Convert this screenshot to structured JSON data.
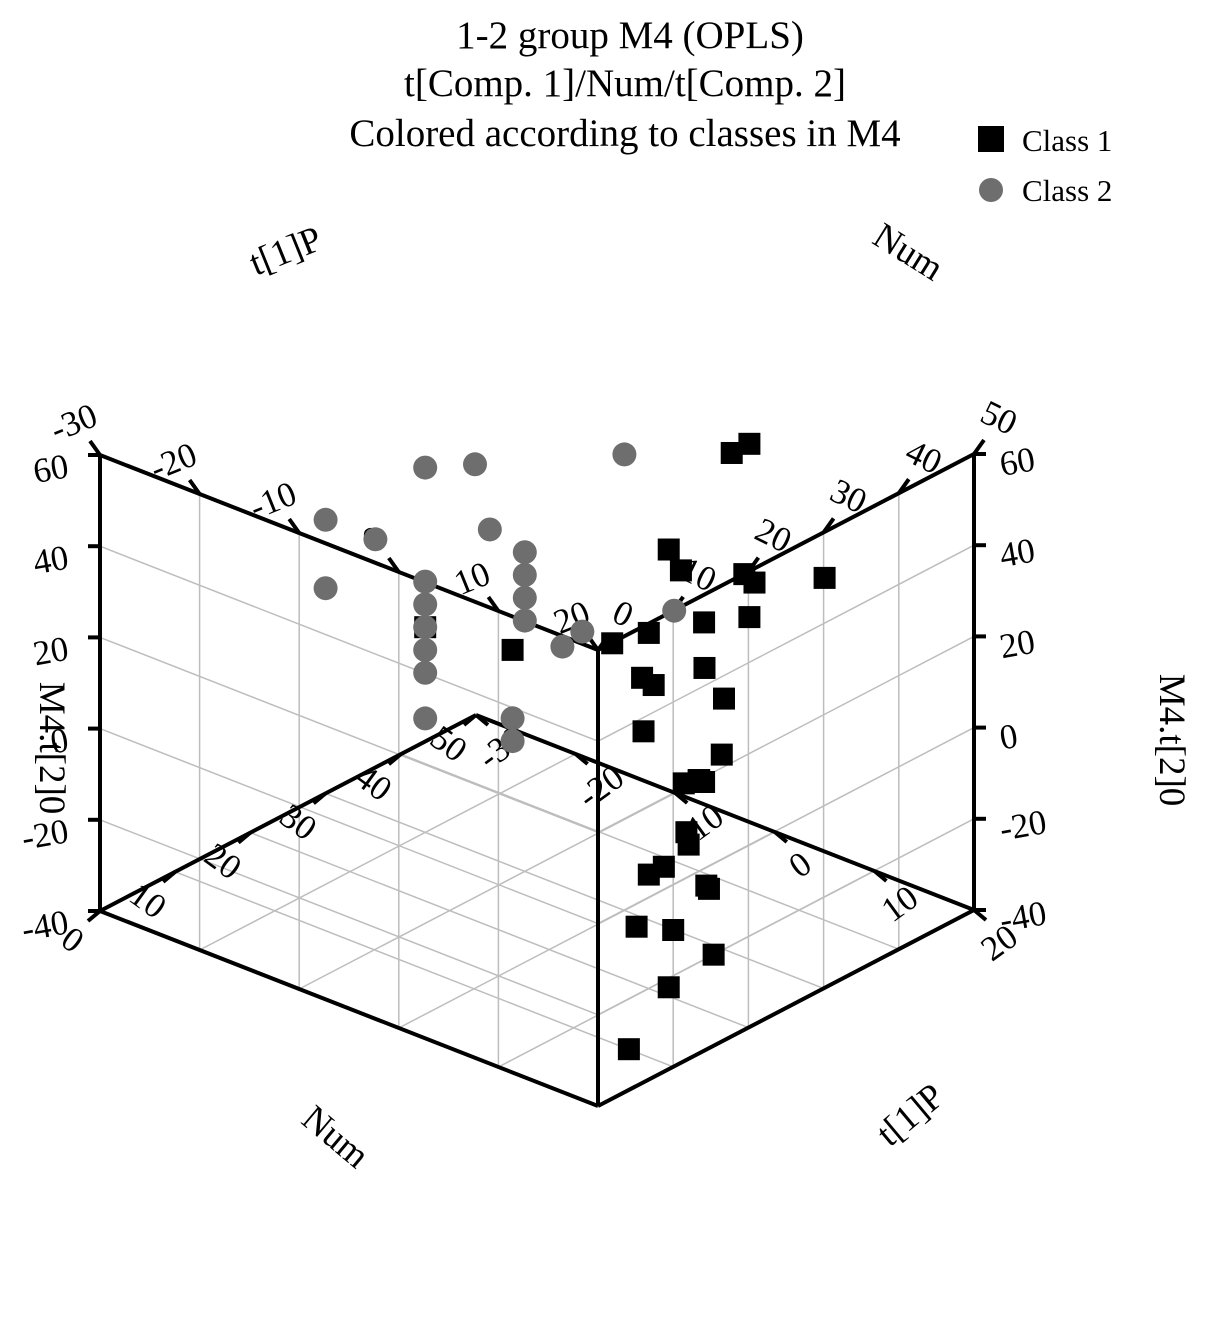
{
  "chart_data": {
    "type": "scatter",
    "title_lines": [
      "1-2 group  M4 (OPLS)",
      "t[Comp. 1]/Num/t[Comp. 2]",
      "Colored according to classes in M4"
    ],
    "legend": [
      {
        "name": "Class 1",
        "color": "#000000",
        "marker": "square"
      },
      {
        "name": "Class 2",
        "color": "#6e6e6e",
        "marker": "circle"
      }
    ],
    "legend_position": "top-right",
    "axes": {
      "t1p": {
        "label": "t[1]P",
        "range": [
          -30,
          20
        ],
        "ticks": [
          -30,
          -20,
          -10,
          0,
          10,
          20
        ]
      },
      "num": {
        "label": "Num",
        "range": [
          0,
          50
        ],
        "ticks": [
          0,
          10,
          20,
          30,
          40,
          50
        ]
      },
      "m4t2": {
        "label": "M4.t[2]0",
        "range": [
          -40,
          60
        ],
        "ticks": [
          -40,
          -20,
          0,
          20,
          40,
          60
        ]
      }
    },
    "series": [
      {
        "name": "Class 1",
        "points": [
          {
            "t1p": 5,
            "num": 40,
            "m4t2": 58
          },
          {
            "t1p": 7,
            "num": 35,
            "m4t2": 62
          },
          {
            "t1p": 12,
            "num": 20,
            "m4t2": 58
          },
          {
            "t1p": 17,
            "num": 15,
            "m4t2": 62
          },
          {
            "t1p": 10,
            "num": 20,
            "m4t2": 38
          },
          {
            "t1p": 12,
            "num": 18,
            "m4t2": 30
          },
          {
            "t1p": 14,
            "num": 14,
            "m4t2": 25
          },
          {
            "t1p": 8,
            "num": 30,
            "m4t2": 30
          },
          {
            "t1p": 6,
            "num": 38,
            "m4t2": 32
          },
          {
            "t1p": 10,
            "num": 30,
            "m4t2": 15
          },
          {
            "t1p": 15,
            "num": 20,
            "m4t2": 10
          },
          {
            "t1p": 12,
            "num": 22,
            "m4t2": 5
          },
          {
            "t1p": 5,
            "num": 40,
            "m4t2": 20
          },
          {
            "t1p": 4,
            "num": 42,
            "m4t2": 25
          },
          {
            "t1p": -20,
            "num": 30,
            "m4t2": 5
          },
          {
            "t1p": -15,
            "num": 35,
            "m4t2": 0
          },
          {
            "t1p": -5,
            "num": 35,
            "m4t2": 10
          },
          {
            "t1p": -2,
            "num": 35,
            "m4t2": 5
          },
          {
            "t1p": 2,
            "num": 38,
            "m4t2": 8
          },
          {
            "t1p": 6,
            "num": 35,
            "m4t2": -5
          },
          {
            "t1p": 8,
            "num": 30,
            "m4t2": -5
          },
          {
            "t1p": 6,
            "num": 32,
            "m4t2": -8
          },
          {
            "t1p": 10,
            "num": 25,
            "m4t2": -10
          },
          {
            "t1p": 10,
            "num": 20,
            "m4t2": -15
          },
          {
            "t1p": 10,
            "num": 28,
            "m4t2": -25
          },
          {
            "t1p": 12,
            "num": 25,
            "m4t2": -20
          },
          {
            "t1p": 10,
            "num": 22,
            "m4t2": -15
          },
          {
            "t1p": 15,
            "num": 22,
            "m4t2": -30
          },
          {
            "t1p": 5,
            "num": 25,
            "m4t2": -35
          },
          {
            "t1p": 12,
            "num": 20,
            "m4t2": -38
          },
          {
            "t1p": 8,
            "num": 20,
            "m4t2": -55
          },
          {
            "t1p": 20,
            "num": 10,
            "m4t2": -10
          },
          {
            "t1p": 14,
            "num": 20,
            "m4t2": -5
          },
          {
            "t1p": 5,
            "num": 50,
            "m4t2": 20
          }
        ]
      },
      {
        "name": "Class 2",
        "points": [
          {
            "t1p": 0,
            "num": 30,
            "m4t2": 60
          },
          {
            "t1p": -15,
            "num": 30,
            "m4t2": 45
          },
          {
            "t1p": -20,
            "num": 30,
            "m4t2": 40
          },
          {
            "t1p": -12,
            "num": 28,
            "m4t2": 35
          },
          {
            "t1p": -10,
            "num": 30,
            "m4t2": 30
          },
          {
            "t1p": 5,
            "num": 30,
            "m4t2": 30
          },
          {
            "t1p": -10,
            "num": 30,
            "m4t2": 25
          },
          {
            "t1p": -10,
            "num": 30,
            "m4t2": 20
          },
          {
            "t1p": -10,
            "num": 30,
            "m4t2": 15
          },
          {
            "t1p": -25,
            "num": 30,
            "m4t2": 20
          },
          {
            "t1p": -30,
            "num": 30,
            "m4t2": 20
          },
          {
            "t1p": -30,
            "num": 30,
            "m4t2": 5
          },
          {
            "t1p": -20,
            "num": 30,
            "m4t2": 15
          },
          {
            "t1p": -20,
            "num": 30,
            "m4t2": 10
          },
          {
            "t1p": -20,
            "num": 30,
            "m4t2": 5
          },
          {
            "t1p": -20,
            "num": 30,
            "m4t2": 0
          },
          {
            "t1p": -20,
            "num": 30,
            "m4t2": -5
          },
          {
            "t1p": -20,
            "num": 30,
            "m4t2": -15
          },
          {
            "t1p": -10,
            "num": 35,
            "m4t2": 5
          },
          {
            "t1p": -8,
            "num": 35,
            "m4t2": 10
          },
          {
            "t1p": -15,
            "num": 35,
            "m4t2": -15
          },
          {
            "t1p": -15,
            "num": 35,
            "m4t2": -20
          }
        ]
      }
    ]
  }
}
